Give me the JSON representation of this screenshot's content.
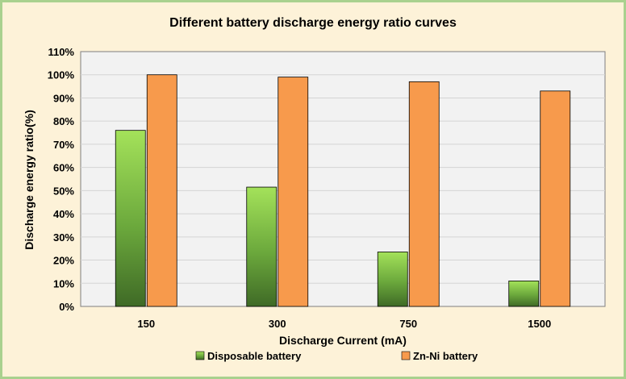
{
  "chart_data": {
    "type": "bar",
    "title": "Different battery discharge energy ratio curves",
    "xlabel": "Discharge Current (mA)",
    "ylabel": "Discharge energy ratio(%)",
    "categories": [
      "150",
      "300",
      "750",
      "1500"
    ],
    "ylim": [
      0,
      110
    ],
    "yticks": [
      "0%",
      "10%",
      "20%",
      "30%",
      "40%",
      "50%",
      "60%",
      "70%",
      "80%",
      "90%",
      "100%",
      "110%"
    ],
    "grid": true,
    "legend": "bottom",
    "series": [
      {
        "name": "Disposable battery",
        "values": [
          76,
          51.5,
          23.5,
          11
        ],
        "color": "#6ab04c"
      },
      {
        "name": "Zn-Ni battery",
        "values": [
          100,
          99,
          97,
          93
        ],
        "color": "#f79a4c"
      }
    ]
  }
}
